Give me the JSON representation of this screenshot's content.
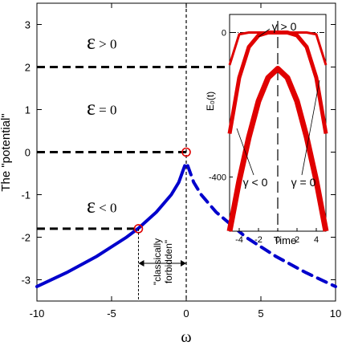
{
  "chart_data": [
    {
      "type": "line",
      "title": "",
      "xlabel": "ω",
      "ylabel": "The \"potential\"",
      "xlim": [
        -10,
        10
      ],
      "ylim": [
        -3.5,
        3.5
      ],
      "x_ticks": [
        "-10",
        "-5",
        "0",
        "5",
        "10"
      ],
      "y_ticks": [
        "-3",
        "-2",
        "-1",
        "0",
        "1",
        "2",
        "3"
      ],
      "series": [
        {
          "style": "solid-blue",
          "x": [
            -10,
            -8,
            -6,
            -4,
            -3.2,
            -2,
            -1,
            -0.5,
            -0.1
          ],
          "y": [
            -3.16,
            -2.83,
            -2.45,
            -2.0,
            -1.79,
            -1.41,
            -1.0,
            -0.71,
            -0.32
          ]
        },
        {
          "style": "dashed-blue",
          "x": [
            0.1,
            0.5,
            1,
            2,
            4,
            6,
            8,
            10
          ],
          "y": [
            -0.32,
            -0.71,
            -1.0,
            -1.41,
            -2.0,
            -2.45,
            -2.83,
            -3.16
          ]
        }
      ],
      "energy_levels": [
        {
          "label": "ε > 0",
          "y": 2
        },
        {
          "label": "ε = 0",
          "y": 0
        },
        {
          "label": "ε < 0",
          "y": -1.8
        }
      ],
      "turning_points": [
        {
          "x": 0,
          "y": 0
        },
        {
          "x": -3.2,
          "y": -1.8
        }
      ],
      "annotations": [
        "\"classically",
        "forbidden\""
      ]
    },
    {
      "type": "line",
      "title": "",
      "xlabel": "Time",
      "ylabel": "E₀(t)",
      "xlim": [
        -5,
        5
      ],
      "ylim": [
        -550,
        50
      ],
      "x_ticks": [
        "-4",
        "-2",
        "0",
        "2",
        "4"
      ],
      "y_ticks": [
        "0",
        "-400"
      ],
      "series": [
        {
          "name": "γ > 0",
          "x": [
            -5,
            -4,
            -3,
            -2,
            -1,
            0,
            1,
            2,
            3,
            4,
            5
          ],
          "y": [
            -90,
            -5,
            0,
            0,
            0,
            0,
            0,
            0,
            0,
            -5,
            -90
          ]
        },
        {
          "name": "γ = 0",
          "x": [
            -5,
            -4,
            -3,
            -2,
            -1,
            0,
            1,
            2,
            3,
            4,
            5
          ],
          "y": [
            -280,
            -125,
            -40,
            -8,
            0,
            0,
            0,
            -8,
            -40,
            -125,
            -280
          ]
        },
        {
          "name": "γ < 0",
          "x": [
            -5,
            -4,
            -3,
            -2,
            -1,
            0,
            1,
            2,
            3,
            4,
            5
          ],
          "y": [
            -560,
            -410,
            -290,
            -190,
            -125,
            -100,
            -125,
            -190,
            -290,
            -410,
            -560
          ]
        }
      ]
    }
  ]
}
